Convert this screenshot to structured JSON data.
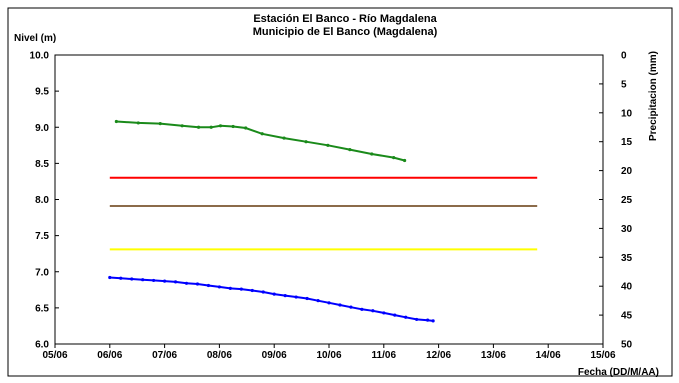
{
  "chart_data": {
    "type": "line",
    "title": "Estación El Banco - Río Magdalena",
    "subtitle": "Municipio de El Banco (Magdalena)",
    "ylabel": "Nivel (m)",
    "ylabel_right": "Precipitacion (mm)",
    "xlabel": "Fecha (DD/M/AA)",
    "xlim": [
      "05/06",
      "15/06"
    ],
    "ylim": [
      6.0,
      10.0
    ],
    "y2lim": [
      0,
      50
    ],
    "y2_reversed": true,
    "grid": false,
    "legend": "none",
    "x_ticks": [
      "05/06",
      "06/06",
      "07/06",
      "08/06",
      "09/06",
      "10/06",
      "11/06",
      "12/06",
      "13/06",
      "14/06",
      "15/06"
    ],
    "y_ticks": [
      "6.0",
      "6.5",
      "7.0",
      "7.5",
      "8.0",
      "8.5",
      "9.0",
      "9.5",
      "10.0"
    ],
    "y2_ticks": [
      "0",
      "5",
      "10",
      "15",
      "20",
      "25",
      "30",
      "35",
      "40",
      "45",
      "50"
    ],
    "series": [
      {
        "color": "#1a8a1a",
        "markers": true,
        "points": [
          [
            1.12,
            9.08
          ],
          [
            1.52,
            9.06
          ],
          [
            1.92,
            9.05
          ],
          [
            2.32,
            9.02
          ],
          [
            2.62,
            9.0
          ],
          [
            2.85,
            9.0
          ],
          [
            3.02,
            9.02
          ],
          [
            3.25,
            9.01
          ],
          [
            3.48,
            8.99
          ],
          [
            3.78,
            8.91
          ],
          [
            4.18,
            8.85
          ],
          [
            4.58,
            8.8
          ],
          [
            4.98,
            8.75
          ],
          [
            5.38,
            8.69
          ],
          [
            5.78,
            8.63
          ],
          [
            6.18,
            8.58
          ],
          [
            6.38,
            8.54
          ]
        ]
      },
      {
        "color": "#ff0000",
        "markers": false,
        "points": [
          [
            1.0,
            8.3
          ],
          [
            8.8,
            8.3
          ]
        ]
      },
      {
        "color": "#8b6b4a",
        "markers": false,
        "points": [
          [
            1.0,
            7.91
          ],
          [
            8.8,
            7.91
          ]
        ]
      },
      {
        "color": "#ffff00",
        "markers": false,
        "points": [
          [
            1.0,
            7.31
          ],
          [
            8.8,
            7.31
          ]
        ]
      },
      {
        "color": "#0000ff",
        "markers": true,
        "points": [
          [
            1.0,
            6.92
          ],
          [
            1.2,
            6.91
          ],
          [
            1.4,
            6.9
          ],
          [
            1.6,
            6.89
          ],
          [
            1.8,
            6.88
          ],
          [
            2.0,
            6.87
          ],
          [
            2.2,
            6.86
          ],
          [
            2.4,
            6.84
          ],
          [
            2.6,
            6.83
          ],
          [
            2.8,
            6.81
          ],
          [
            3.0,
            6.79
          ],
          [
            3.2,
            6.77
          ],
          [
            3.4,
            6.76
          ],
          [
            3.6,
            6.74
          ],
          [
            3.8,
            6.72
          ],
          [
            4.0,
            6.69
          ],
          [
            4.2,
            6.67
          ],
          [
            4.4,
            6.65
          ],
          [
            4.6,
            6.63
          ],
          [
            4.8,
            6.6
          ],
          [
            5.0,
            6.57
          ],
          [
            5.2,
            6.54
          ],
          [
            5.4,
            6.51
          ],
          [
            5.6,
            6.48
          ],
          [
            5.8,
            6.46
          ],
          [
            6.0,
            6.43
          ],
          [
            6.2,
            6.4
          ],
          [
            6.4,
            6.37
          ],
          [
            6.6,
            6.34
          ],
          [
            6.8,
            6.33
          ],
          [
            6.9,
            6.32
          ]
        ]
      }
    ]
  }
}
